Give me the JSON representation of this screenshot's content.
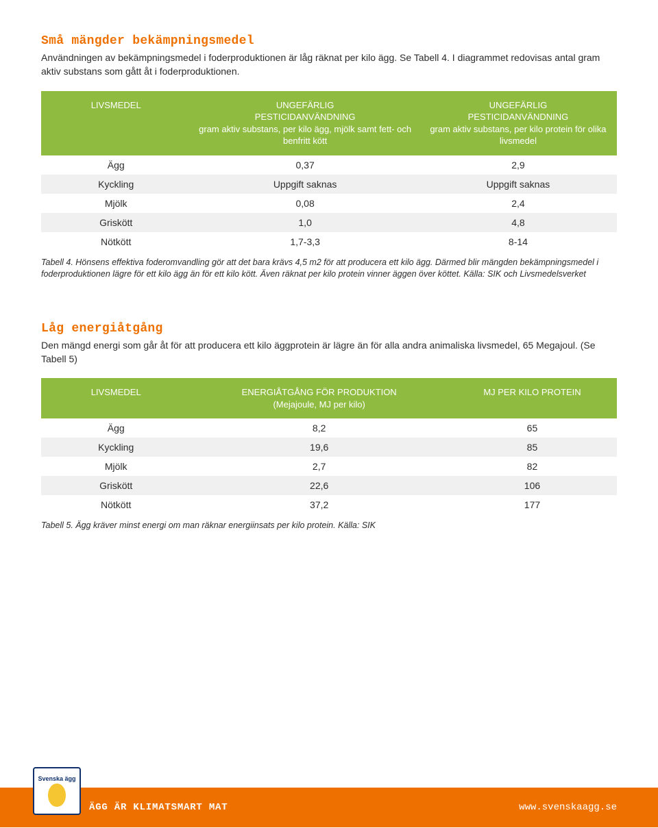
{
  "section1": {
    "title": "Små mängder bekämpningsmedel",
    "body": "Användningen av bekämpningsmedel i foderproduktionen är låg räknat per kilo ägg. Se Tabell 4. I diagrammet redovisas antal gram aktiv substans som gått åt i foderproduktionen."
  },
  "table1": {
    "headers": {
      "c0": "LIVSMEDEL",
      "c1_l1": "UNGEFÄRLIG",
      "c1_l2": "PESTICIDANVÄNDNING",
      "c1_l3": "gram aktiv substans, per kilo ägg, mjölk samt fett- och benfritt kött",
      "c2_l1": "UNGEFÄRLIG",
      "c2_l2": "PESTICIDANVÄNDNING",
      "c2_l3": "gram aktiv substans, per kilo protein för olika livsmedel"
    },
    "rows": [
      {
        "c0": "Ägg",
        "c1": "0,37",
        "c2": "2,9"
      },
      {
        "c0": "Kyckling",
        "c1": "Uppgift saknas",
        "c2": "Uppgift saknas"
      },
      {
        "c0": "Mjölk",
        "c1": "0,08",
        "c2": "2,4"
      },
      {
        "c0": "Griskött",
        "c1": "1,0",
        "c2": "4,8"
      },
      {
        "c0": "Nötkött",
        "c1": "1,7-3,3",
        "c2": "8-14"
      }
    ],
    "caption": "Tabell 4. Hönsens effektiva foderomvandling gör att det bara krävs 4,5 m2 för att producera ett kilo ägg. Därmed blir mängden bekämpningsmedel i foderproduktionen lägre för ett kilo ägg än för ett kilo kött. Även räknat per kilo protein vinner äggen över köttet. Källa: SIK och Livsmedelsverket"
  },
  "section2": {
    "title": "Låg energiåtgång",
    "body": "Den mängd energi som går åt för att producera ett kilo äggprotein är lägre än för alla andra animaliska livsmedel, 65 Megajoul. (Se Tabell 5)"
  },
  "table2": {
    "headers": {
      "c0": "LIVSMEDEL",
      "c1_l1": "ENERGIÅTGÅNG FÖR PRODUKTION",
      "c1_l2": "(Mejajoule, MJ per kilo)",
      "c2": "MJ PER KILO PROTEIN"
    },
    "rows": [
      {
        "c0": "Ägg",
        "c1": "8,2",
        "c2": "65"
      },
      {
        "c0": "Kyckling",
        "c1": "19,6",
        "c2": "85"
      },
      {
        "c0": "Mjölk",
        "c1": "2,7",
        "c2": "82"
      },
      {
        "c0": "Griskött",
        "c1": "22,6",
        "c2": "106"
      },
      {
        "c0": "Nötkött",
        "c1": "37,2",
        "c2": "177"
      }
    ],
    "caption": "Tabell 5. Ägg kräver minst energi om man räknar energiinsats per kilo protein. Källa: SIK"
  },
  "footer": {
    "left": "ÄGG ÄR KLIMATSMART MAT",
    "right": "www.svenskaagg.se",
    "logo": "Svenska ägg"
  },
  "colors": {
    "accent": "#ee7100",
    "table_header": "#8fbb40",
    "row_alt": "#f0f0f0",
    "text": "#2c2c2c",
    "logo_border": "#10316b",
    "logo_egg": "#f5c632"
  }
}
